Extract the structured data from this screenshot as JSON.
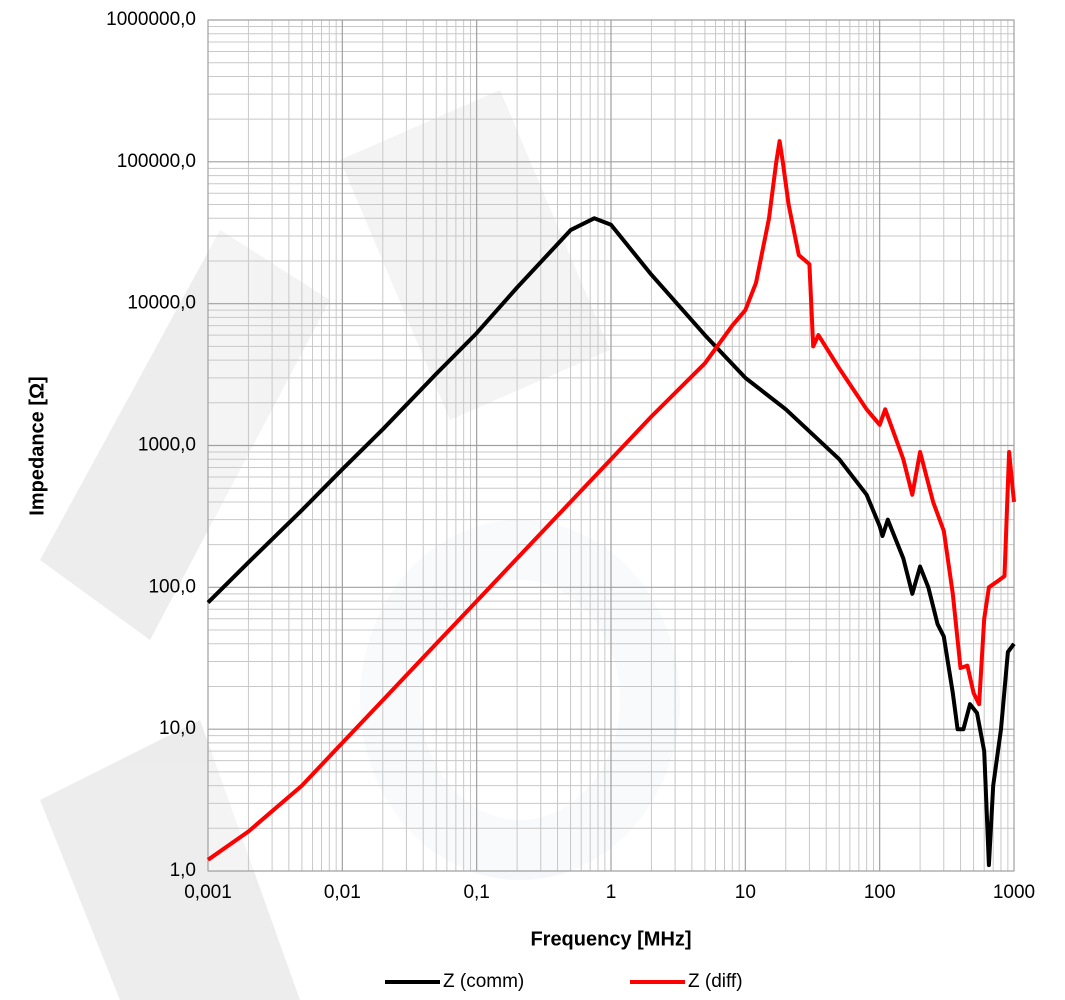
{
  "chart_data": {
    "type": "line",
    "x_label": "Frequency  [MHz]",
    "y_label": "Impedance [Ω]",
    "x_log": true,
    "y_log": true,
    "grid": true,
    "minor_grid": true,
    "legend": "bottom",
    "xlim": [
      0.001,
      1000
    ],
    "xticks": [
      {
        "value": 0.001,
        "label": "0,001"
      },
      {
        "value": 0.01,
        "label": "0,01"
      },
      {
        "value": 0.1,
        "label": "0,1"
      },
      1,
      10,
      100,
      1000
    ],
    "ylim": [
      1,
      1000000
    ],
    "yticks": [
      {
        "value": 1,
        "label": "1,0"
      },
      {
        "value": 10,
        "label": "10,0"
      },
      {
        "value": 100,
        "label": "100,0"
      },
      {
        "value": 1000,
        "label": "1000,0"
      },
      {
        "value": 10000,
        "label": "10000,0"
      },
      {
        "value": 100000,
        "label": "100000,0"
      },
      {
        "value": 1000000,
        "label": "1000000,0"
      }
    ],
    "series": [
      {
        "name": "Z  (comm)",
        "color": "#000000",
        "x": [
          0.001,
          0.002,
          0.005,
          0.01,
          0.02,
          0.05,
          0.1,
          0.2,
          0.5,
          0.75,
          1,
          2,
          5,
          10,
          20,
          50,
          80,
          100,
          105,
          115,
          150,
          175,
          200,
          230,
          270,
          300,
          350,
          380,
          420,
          470,
          530,
          600,
          650,
          700,
          800,
          900,
          1000
        ],
        "values": [
          78,
          150,
          350,
          680,
          1300,
          3200,
          6200,
          13000,
          33000,
          40000,
          36000,
          16000,
          6000,
          3000,
          1800,
          800,
          450,
          270,
          230,
          300,
          160,
          90,
          140,
          100,
          55,
          45,
          18,
          10,
          10,
          15,
          13,
          7,
          1.1,
          4,
          10,
          35,
          40
        ]
      },
      {
        "name": "Z (diff)",
        "color": "#ff0000",
        "x": [
          0.001,
          0.002,
          0.005,
          0.01,
          0.02,
          0.05,
          0.1,
          0.2,
          0.5,
          1,
          2,
          5,
          8,
          10,
          12,
          15,
          17,
          18,
          19,
          21,
          25,
          30,
          32,
          35,
          50,
          80,
          100,
          110,
          150,
          175,
          200,
          250,
          300,
          350,
          400,
          450,
          500,
          550,
          600,
          650,
          750,
          850,
          920,
          1000
        ],
        "values": [
          1.2,
          1.9,
          4,
          8,
          16,
          40,
          80,
          160,
          400,
          800,
          1600,
          3800,
          7000,
          9000,
          14000,
          40000,
          100000,
          140000,
          100000,
          50000,
          22000,
          19000,
          5000,
          6000,
          3500,
          1800,
          1400,
          1800,
          800,
          450,
          900,
          400,
          250,
          90,
          27,
          28,
          18,
          15,
          60,
          100,
          110,
          120,
          900,
          400
        ]
      }
    ]
  }
}
